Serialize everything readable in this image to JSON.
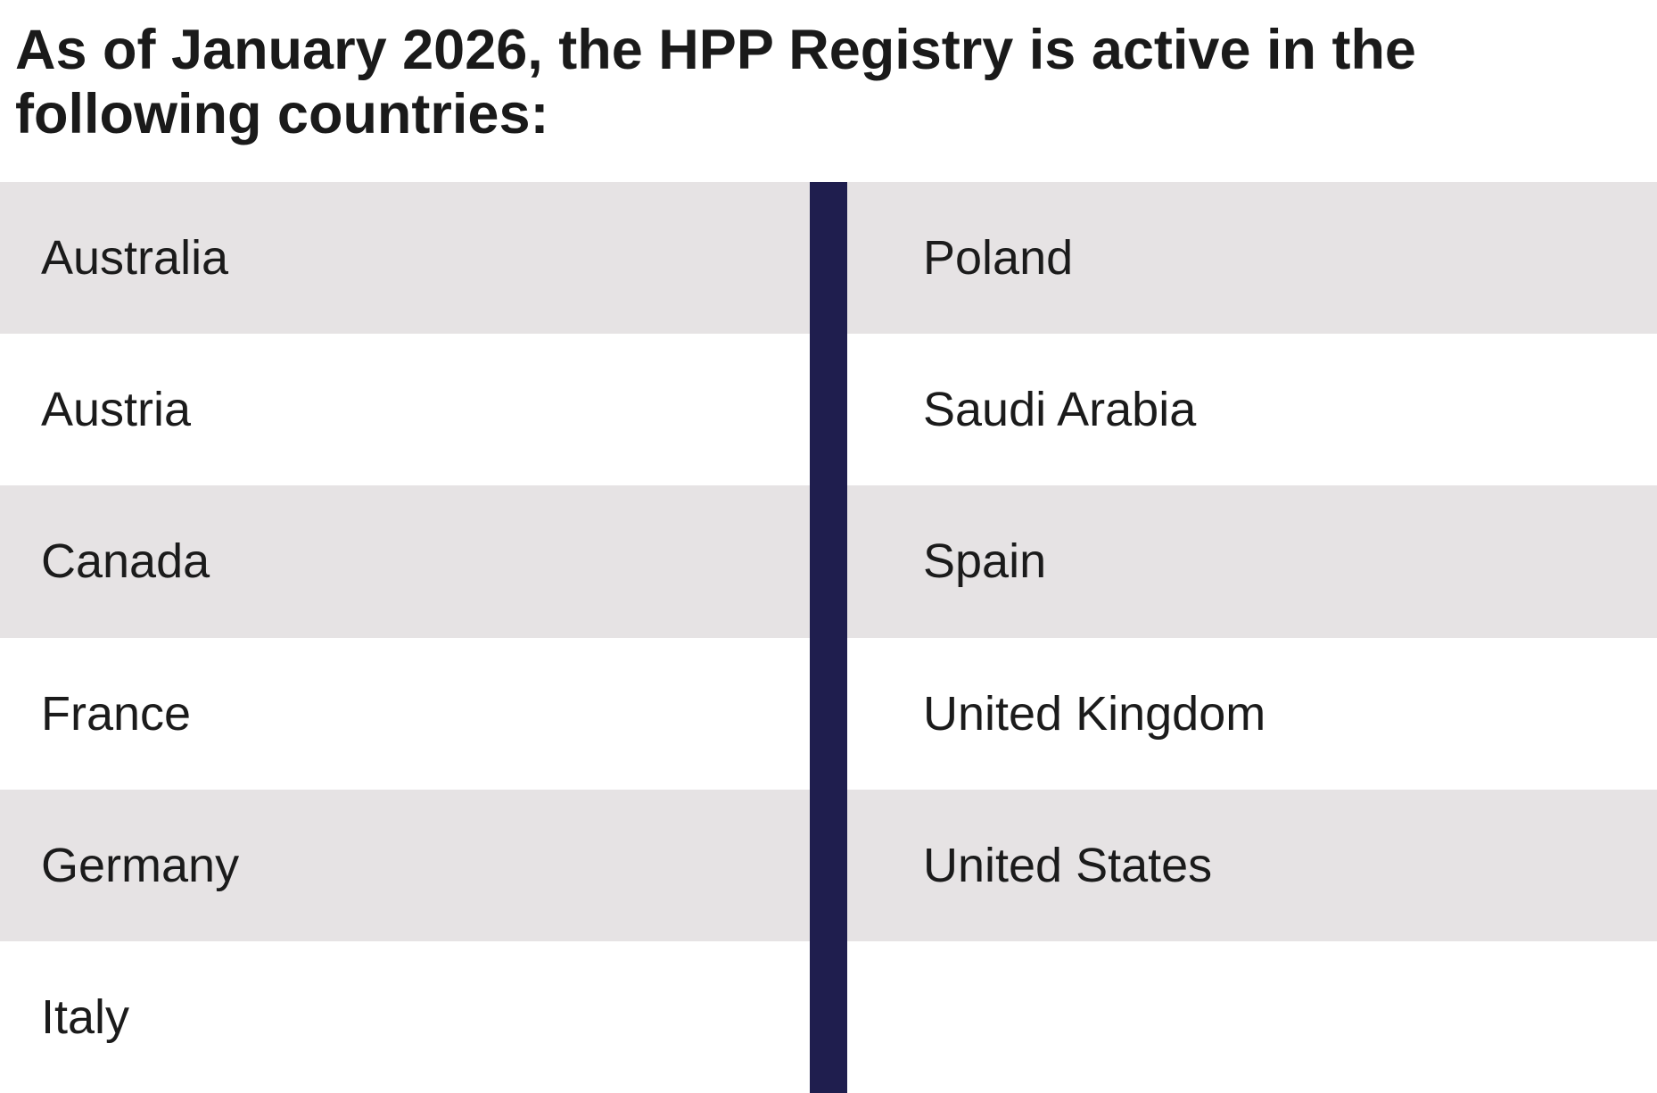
{
  "heading": {
    "lines": [
      "As of January 2026, the HPP Registry is active in the",
      "following countries:"
    ],
    "full_text": "As of January 2026, the HPP Registry is active in the following countries:"
  },
  "countries": {
    "left": [
      "Australia",
      "Austria",
      "Canada",
      "France",
      "Germany",
      "Italy"
    ],
    "right": [
      "Poland",
      "Saudi Arabia",
      "Spain",
      "United Kingdom",
      "United States",
      ""
    ]
  },
  "colors": {
    "row_stripe": "#e6e3e4",
    "divider_bar": "#1f1e4e",
    "heading_text": "#1a1a1a",
    "body_text": "#1b1b1b",
    "background": "#ffffff"
  }
}
